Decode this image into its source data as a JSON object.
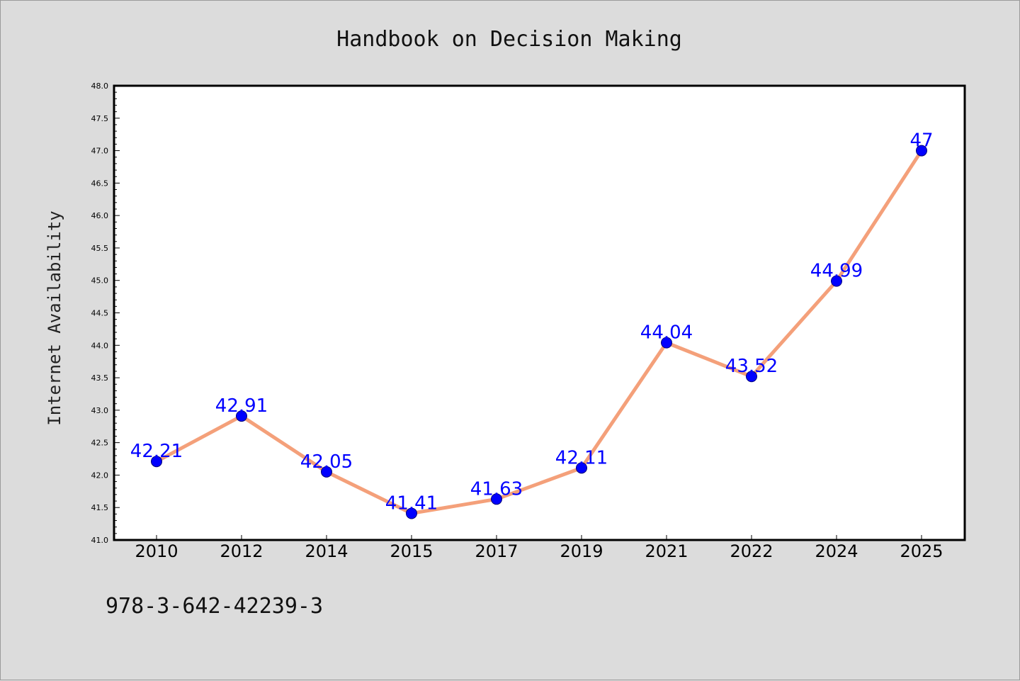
{
  "chart_data": {
    "type": "line",
    "title": "Handbook on Decision Making",
    "xlabel": "",
    "ylabel": "Internet Availability",
    "categories": [
      "2010",
      "2012",
      "2014",
      "2015",
      "2017",
      "2019",
      "2021",
      "2022",
      "2024",
      "2025"
    ],
    "series": [
      {
        "values": [
          42.21,
          42.91,
          42.05,
          41.41,
          41.63,
          42.11,
          44.04,
          43.52,
          44.99,
          47
        ]
      }
    ],
    "data_labels": [
      "42.21",
      "42.91",
      "42.05",
      "41.41",
      "41.63",
      "42.11",
      "44.04",
      "43.52",
      "44.99",
      "47"
    ],
    "ylim": [
      41.0,
      48.0
    ],
    "yticks": [
      "41.0",
      "41.5",
      "42.0",
      "42.5",
      "43.0",
      "43.5",
      "44.0",
      "44.5",
      "45.0",
      "45.5",
      "46.0",
      "46.5",
      "47.0",
      "47.5",
      "48.0"
    ],
    "grid": false,
    "legend": "none",
    "colors": {
      "line": "#f4a07a",
      "marker": "#0000ff",
      "label": "#0000ff"
    }
  },
  "footer": {
    "isbn": "978-3-642-42239-3"
  }
}
